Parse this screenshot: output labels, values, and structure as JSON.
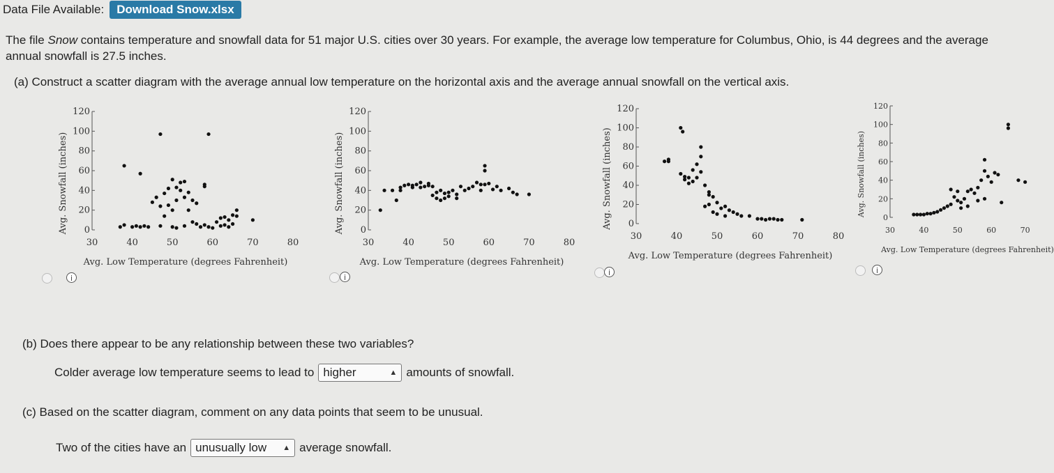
{
  "header": {
    "label": "Data File Available:",
    "download_label": "Download Snow.xlsx"
  },
  "intro": {
    "part1": "The file ",
    "file": "Snow",
    "part2": " contains temperature and snowfall data for 51 major U.S. cities over 30 years. For example, the average low temperature for Columbus, Ohio, is 44 degrees and the average annual snowfall is 27.5 inches."
  },
  "question_a": "(a)  Construct a scatter diagram with the average annual low temperature on the horizontal axis and the average annual snowfall on the vertical axis.",
  "question_b": {
    "prompt": "(b)  Does there appear to be any relationship between these two variables?",
    "sentence_start": "Colder average low temperature seems to lead to",
    "selected": "higher",
    "sentence_end": "amounts of snowfall."
  },
  "question_c": {
    "prompt": "(c)  Based on the scatter diagram, comment on any data points that seem to be unusual.",
    "sentence_start": "Two of the cities have an",
    "selected": "unusually low",
    "sentence_end": "average snowfall."
  },
  "chart_data": [
    {
      "type": "scatter",
      "xlabel": "Avg. Low Temperature (degrees Fahrenheit)",
      "ylabel": "Avg. Snowfall (inches)",
      "xlim": [
        30,
        80
      ],
      "ylim": [
        0,
        120
      ],
      "xticks": [
        "30",
        "40",
        "50",
        "60",
        "70",
        "80"
      ],
      "yticks": [
        "0",
        "20",
        "40",
        "60",
        "80",
        "100",
        "120"
      ],
      "points": [
        [
          37,
          3
        ],
        [
          38,
          5
        ],
        [
          40,
          3
        ],
        [
          41,
          4
        ],
        [
          42,
          3
        ],
        [
          43,
          4
        ],
        [
          44,
          3
        ],
        [
          47,
          4
        ],
        [
          50,
          3
        ],
        [
          51,
          2
        ],
        [
          53,
          4
        ],
        [
          57,
          3
        ],
        [
          58,
          5
        ],
        [
          59,
          3
        ],
        [
          60,
          2
        ],
        [
          62,
          4
        ],
        [
          63,
          5
        ],
        [
          64,
          3
        ],
        [
          65,
          6
        ],
        [
          61,
          8
        ],
        [
          62,
          12
        ],
        [
          63,
          13
        ],
        [
          65,
          15
        ],
        [
          64,
          10
        ],
        [
          66,
          20
        ],
        [
          66,
          14
        ],
        [
          70,
          10
        ],
        [
          55,
          8
        ],
        [
          56,
          6
        ],
        [
          48,
          14
        ],
        [
          50,
          20
        ],
        [
          49,
          25
        ],
        [
          47,
          24
        ],
        [
          45,
          28
        ],
        [
          46,
          33
        ],
        [
          48,
          37
        ],
        [
          49,
          42
        ],
        [
          51,
          43
        ],
        [
          52,
          48
        ],
        [
          53,
          49
        ],
        [
          52,
          40
        ],
        [
          54,
          38
        ],
        [
          51,
          30
        ],
        [
          55,
          30
        ],
        [
          56,
          27
        ],
        [
          53,
          33
        ],
        [
          54,
          20
        ],
        [
          50,
          51
        ],
        [
          58,
          44
        ],
        [
          58,
          46
        ],
        [
          38,
          65
        ],
        [
          42,
          57
        ],
        [
          47,
          97
        ],
        [
          59,
          97
        ]
      ]
    },
    {
      "type": "scatter",
      "xlabel": "Avg. Low Temperature (degrees Fahrenheit)",
      "ylabel": "Avg. Snowfall (inches)",
      "xlim": [
        30,
        80
      ],
      "ylim": [
        0,
        120
      ],
      "xticks": [
        "30",
        "40",
        "50",
        "60",
        "70",
        "80"
      ],
      "yticks": [
        "0",
        "20",
        "40",
        "60",
        "80",
        "100",
        "120"
      ],
      "points": [
        [
          33,
          20
        ],
        [
          34,
          40
        ],
        [
          36,
          40
        ],
        [
          37,
          30
        ],
        [
          38,
          40
        ],
        [
          38,
          43
        ],
        [
          39,
          45
        ],
        [
          40,
          46
        ],
        [
          41,
          45
        ],
        [
          41,
          43
        ],
        [
          42,
          46
        ],
        [
          43,
          48
        ],
        [
          43,
          43
        ],
        [
          44,
          44
        ],
        [
          45,
          45
        ],
        [
          45,
          47
        ],
        [
          46,
          44
        ],
        [
          47,
          38
        ],
        [
          48,
          40
        ],
        [
          49,
          37
        ],
        [
          49,
          32
        ],
        [
          50,
          38
        ],
        [
          51,
          40
        ],
        [
          52,
          36
        ],
        [
          53,
          44
        ],
        [
          54,
          40
        ],
        [
          55,
          42
        ],
        [
          56,
          44
        ],
        [
          57,
          48
        ],
        [
          58,
          46
        ],
        [
          58,
          40
        ],
        [
          59,
          46
        ],
        [
          60,
          47
        ],
        [
          61,
          41
        ],
        [
          62,
          44
        ],
        [
          63,
          40
        ],
        [
          65,
          42
        ],
        [
          66,
          38
        ],
        [
          67,
          36
        ],
        [
          70,
          36
        ],
        [
          59,
          60
        ],
        [
          59,
          65
        ],
        [
          46,
          35
        ],
        [
          47,
          32
        ],
        [
          48,
          30
        ],
        [
          50,
          34
        ],
        [
          52,
          32
        ]
      ]
    },
    {
      "type": "scatter",
      "xlabel": "Avg. Low Temperature (degrees Fahrenheit)",
      "ylabel": "Avg. Snowfall (inches)",
      "xlim": [
        30,
        80
      ],
      "ylim": [
        0,
        120
      ],
      "xticks": [
        "30",
        "40",
        "50",
        "60",
        "70",
        "80"
      ],
      "yticks": [
        "0",
        "20",
        "40",
        "60",
        "80",
        "100",
        "120"
      ],
      "points": [
        [
          41,
          100
        ],
        [
          41.5,
          96
        ],
        [
          37,
          65
        ],
        [
          38,
          65
        ],
        [
          38,
          67
        ],
        [
          41,
          52
        ],
        [
          42,
          49
        ],
        [
          42,
          46
        ],
        [
          43,
          48
        ],
        [
          43,
          42
        ],
        [
          44,
          44
        ],
        [
          45,
          48
        ],
        [
          44,
          56
        ],
        [
          46,
          54
        ],
        [
          45,
          62
        ],
        [
          46,
          80
        ],
        [
          46,
          70
        ],
        [
          47,
          40
        ],
        [
          48,
          33
        ],
        [
          48,
          30
        ],
        [
          49,
          28
        ],
        [
          48,
          20
        ],
        [
          50,
          22
        ],
        [
          51,
          16
        ],
        [
          52,
          18
        ],
        [
          53,
          14
        ],
        [
          54,
          12
        ],
        [
          55,
          10
        ],
        [
          56,
          8
        ],
        [
          58,
          8
        ],
        [
          60,
          5
        ],
        [
          61,
          5
        ],
        [
          62,
          4
        ],
        [
          63,
          5
        ],
        [
          64,
          5
        ],
        [
          65,
          4
        ],
        [
          66,
          4
        ],
        [
          71,
          4
        ],
        [
          47,
          18
        ],
        [
          49,
          12
        ],
        [
          52,
          8
        ],
        [
          50,
          10
        ]
      ]
    },
    {
      "type": "scatter",
      "xlabel": "Avg. Low Temperature (degrees Fahrenheit)",
      "ylabel": "Avg. Snowfall (inches)",
      "xlim": [
        30,
        80
      ],
      "ylim": [
        0,
        120
      ],
      "xticks": [
        "30",
        "40",
        "50",
        "60",
        "70"
      ],
      "yticks": [
        "0",
        "20",
        "40",
        "60",
        "80",
        "100",
        "120"
      ],
      "points": [
        [
          37,
          3
        ],
        [
          38,
          3
        ],
        [
          39,
          3
        ],
        [
          40,
          3
        ],
        [
          41,
          4
        ],
        [
          42,
          4
        ],
        [
          43,
          5
        ],
        [
          44,
          6
        ],
        [
          45,
          8
        ],
        [
          46,
          10
        ],
        [
          47,
          12
        ],
        [
          48,
          14
        ],
        [
          49,
          22
        ],
        [
          50,
          18
        ],
        [
          51,
          16
        ],
        [
          52,
          20
        ],
        [
          53,
          28
        ],
        [
          54,
          30
        ],
        [
          55,
          26
        ],
        [
          56,
          32
        ],
        [
          57,
          40
        ],
        [
          58,
          50
        ],
        [
          58,
          62
        ],
        [
          59,
          44
        ],
        [
          60,
          38
        ],
        [
          61,
          48
        ],
        [
          62,
          46
        ],
        [
          63,
          16
        ],
        [
          58,
          20
        ],
        [
          48,
          30
        ],
        [
          50,
          28
        ],
        [
          65,
          96
        ],
        [
          65,
          100
        ],
        [
          68,
          40
        ],
        [
          70,
          38
        ],
        [
          56,
          18
        ],
        [
          53,
          12
        ],
        [
          51,
          10
        ]
      ]
    }
  ]
}
